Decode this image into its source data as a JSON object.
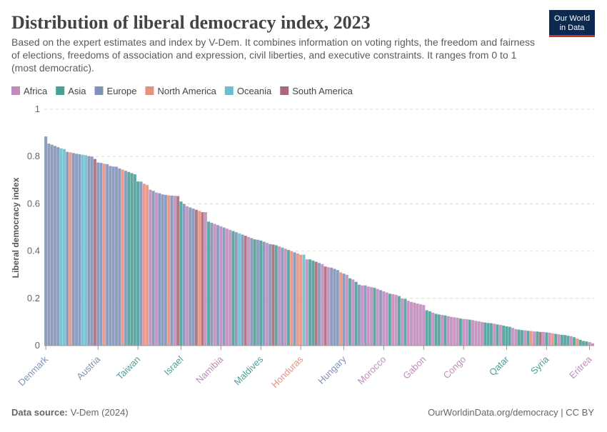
{
  "chart_data": {
    "type": "bar",
    "title": "Distribution of liberal democracy index, 2023",
    "subtitle": "Based on the expert estimates and index by V-Dem. It combines information on voting rights, the freedom and fairness of elections, freedoms of association and expression, civil liberties, and executive constraints. It ranges from 0 to 1 (most democratic).",
    "logo": [
      "Our World",
      "in Data"
    ],
    "y_label": "Liberal democracy index",
    "source_label": "Data source:",
    "source": "V-Dem (2024)",
    "url": "OurWorldinData.org/democracy | CC BY",
    "ylim": [
      0,
      1
    ],
    "yticks": [
      0,
      0.2,
      0.4,
      0.6,
      0.8,
      1
    ],
    "grid": true,
    "series": [
      {
        "name": "Africa",
        "color": "#c28bbd"
      },
      {
        "name": "Asia",
        "color": "#4c9f99"
      },
      {
        "name": "Europe",
        "color": "#8192b8"
      },
      {
        "name": "North America",
        "color": "#e8917f"
      },
      {
        "name": "Oceania",
        "color": "#6bbfcf"
      },
      {
        "name": "South America",
        "color": "#a86a74"
      }
    ],
    "categories": [
      "Denmark",
      null,
      null,
      null,
      null,
      null,
      null,
      null,
      null,
      null,
      null,
      null,
      null,
      null,
      null,
      null,
      null,
      "Austria",
      null,
      null,
      null,
      null,
      null,
      null,
      null,
      null,
      null,
      null,
      null,
      null,
      "Taiwan",
      null,
      null,
      null,
      null,
      null,
      null,
      null,
      null,
      null,
      null,
      null,
      null,
      null,
      "Israel",
      null,
      null,
      null,
      null,
      null,
      null,
      null,
      null,
      null,
      null,
      null,
      null,
      "Namibia",
      null,
      null,
      null,
      null,
      null,
      null,
      null,
      null,
      null,
      null,
      null,
      null,
      "Maldives",
      null,
      null,
      null,
      null,
      null,
      null,
      null,
      null,
      null,
      null,
      null,
      null,
      "Honduras",
      null,
      null,
      null,
      null,
      null,
      null,
      null,
      null,
      null,
      null,
      null,
      null,
      null,
      "Hungary",
      null,
      null,
      null,
      null,
      null,
      null,
      null,
      null,
      null,
      null,
      null,
      null,
      "Morocco",
      null,
      null,
      null,
      null,
      null,
      null,
      null,
      null,
      null,
      null,
      null,
      null,
      "Gabon",
      null,
      null,
      null,
      null,
      null,
      null,
      null,
      null,
      null,
      null,
      null,
      null,
      "Congo",
      null,
      null,
      null,
      null,
      null,
      null,
      null,
      null,
      null,
      null,
      null,
      null,
      null,
      "Qatar",
      null,
      null,
      null,
      null,
      null,
      null,
      null,
      null,
      null,
      null,
      null,
      null,
      "Syria",
      null,
      null,
      null,
      null,
      null,
      null,
      null,
      null,
      null,
      null,
      null,
      null,
      null,
      "Eritrea",
      null
    ],
    "values": [
      0.885,
      0.855,
      0.85,
      0.845,
      0.84,
      0.835,
      0.832,
      0.82,
      0.818,
      0.815,
      0.812,
      0.81,
      0.808,
      0.806,
      0.802,
      0.8,
      0.79,
      0.775,
      0.773,
      0.77,
      0.768,
      0.76,
      0.758,
      0.757,
      0.75,
      0.745,
      0.74,
      0.735,
      0.73,
      0.725,
      0.695,
      0.694,
      0.685,
      0.68,
      0.66,
      0.655,
      0.648,
      0.645,
      0.64,
      0.638,
      0.636,
      0.635,
      0.634,
      0.633,
      0.61,
      0.6,
      0.59,
      0.585,
      0.58,
      0.575,
      0.57,
      0.565,
      0.565,
      0.525,
      0.52,
      0.515,
      0.51,
      0.505,
      0.5,
      0.495,
      0.49,
      0.485,
      0.48,
      0.475,
      0.47,
      0.465,
      0.46,
      0.455,
      0.45,
      0.448,
      0.445,
      0.44,
      0.435,
      0.43,
      0.428,
      0.425,
      0.42,
      0.415,
      0.41,
      0.405,
      0.4,
      0.395,
      0.39,
      0.385,
      0.385,
      0.365,
      0.365,
      0.36,
      0.355,
      0.35,
      0.345,
      0.335,
      0.332,
      0.33,
      0.325,
      0.32,
      0.31,
      0.305,
      0.3,
      0.285,
      0.28,
      0.27,
      0.258,
      0.255,
      0.255,
      0.25,
      0.248,
      0.245,
      0.24,
      0.235,
      0.23,
      0.225,
      0.22,
      0.218,
      0.215,
      0.21,
      0.2,
      0.198,
      0.19,
      0.185,
      0.182,
      0.178,
      0.175,
      0.172,
      0.15,
      0.145,
      0.14,
      0.135,
      0.132,
      0.13,
      0.128,
      0.125,
      0.122,
      0.12,
      0.118,
      0.115,
      0.113,
      0.112,
      0.11,
      0.108,
      0.105,
      0.103,
      0.1,
      0.098,
      0.096,
      0.095,
      0.093,
      0.09,
      0.088,
      0.085,
      0.082,
      0.08,
      0.075,
      0.07,
      0.068,
      0.066,
      0.065,
      0.063,
      0.062,
      0.06,
      0.06,
      0.058,
      0.058,
      0.056,
      0.055,
      0.052,
      0.05,
      0.048,
      0.046,
      0.045,
      0.042,
      0.04,
      0.036,
      0.03,
      0.025,
      0.02,
      0.018,
      0.015,
      0.01
    ],
    "regions": [
      "Europe",
      "Europe",
      "Europe",
      "Europe",
      "Europe",
      "Oceania",
      "Oceania",
      "Europe",
      "North America",
      "Europe",
      "Europe",
      "Europe",
      "Oceania",
      "Oceania",
      "Europe",
      "Europe",
      "South America",
      "Europe",
      "Europe",
      "North America",
      "Europe",
      "Europe",
      "Europe",
      "Europe",
      "Europe",
      "North America",
      "Europe",
      "Asia",
      "Asia",
      "Asia",
      "Asia",
      "Europe",
      "North America",
      "North America",
      "Africa",
      "Europe",
      "Africa",
      "Europe",
      "Europe",
      "Europe",
      "North America",
      "Europe",
      "Africa",
      "South America",
      "Asia",
      "Europe",
      "Africa",
      "Europe",
      "Europe",
      "South America",
      "North America",
      "South America",
      "Africa",
      "Asia",
      "Europe",
      "Africa",
      "Europe",
      "Africa",
      "Europe",
      "Africa",
      "Africa",
      "Asia",
      "Europe",
      "Oceania",
      "Europe",
      "South America",
      "Africa",
      "Europe",
      "Asia",
      "Europe",
      "Asia",
      "Europe",
      "Africa",
      "Europe",
      "South America",
      "Asia",
      "Africa",
      "Europe",
      "Africa",
      "Asia",
      "North America",
      "Europe",
      "North America",
      "North America",
      "Oceania",
      "Africa",
      "Asia",
      "Asia",
      "South America",
      "Europe",
      "Africa",
      "South America",
      "Africa",
      "Europe",
      "Europe",
      "Europe",
      "North America",
      "Europe",
      "Africa",
      "Asia",
      "Africa",
      "Asia",
      "Europe",
      "Africa",
      "Europe",
      "Africa",
      "Africa",
      "Asia",
      "Africa",
      "Europe",
      "Africa",
      "Africa",
      "Asia",
      "Africa",
      "Africa",
      "Asia",
      "Africa",
      "Asia",
      "Africa",
      "Africa",
      "Africa",
      "Africa",
      "Africa",
      "Africa",
      "Asia",
      "Asia",
      "Africa",
      "Asia",
      "Asia",
      "Africa",
      "Asia",
      "Africa",
      "Africa",
      "Africa",
      "Africa",
      "Asia",
      "Africa",
      "Africa",
      "Asia",
      "Africa",
      "Africa",
      "Africa",
      "Africa",
      "Asia",
      "Asia",
      "Asia",
      "Africa",
      "Asia",
      "Africa",
      "Asia",
      "Asia",
      "Asia",
      "Africa",
      "Africa",
      "Asia",
      "Asia",
      "Africa",
      "Asia",
      "North America",
      "Africa",
      "Asia",
      "South America",
      "Africa",
      "Asia",
      "Africa",
      "North America",
      "Asia",
      "Africa",
      "Asia",
      "Asia",
      "Asia",
      "Africa",
      "Asia",
      "North America",
      "Asia",
      "Asia",
      "Asia",
      "Africa",
      "Africa"
    ]
  }
}
